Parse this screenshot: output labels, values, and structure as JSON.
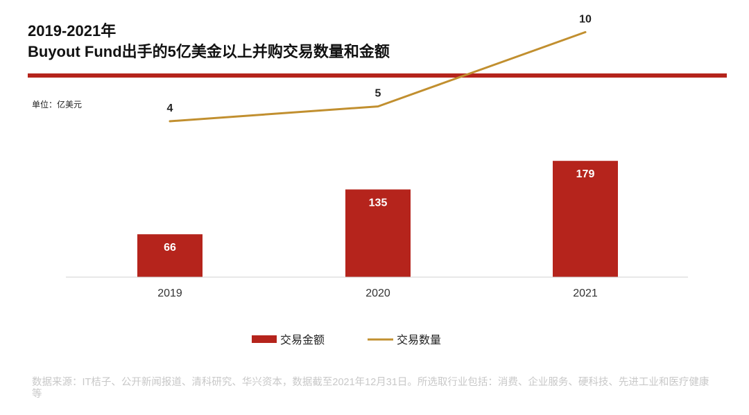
{
  "header": {
    "title_line1": "2019-2021年",
    "title_line2": "Buyout Fund出手的5亿美金以上并购交易数量和金额"
  },
  "unit_label": "单位：亿美元",
  "source_text": "数据来源：IT桔子、公开新闻报道、清科研究、华兴资本，数据截至2021年12月31日。所选取行业包括：消费、企业服务、硬科技、先进工业和医疗健康等",
  "colors": {
    "accent_red": "#b5241c",
    "bar_red": "#b5241c",
    "line_gold": "#c18f2f",
    "source_gray": "#c8c8c8"
  },
  "chart_data": {
    "type": "bar",
    "categories": [
      "2019",
      "2020",
      "2021"
    ],
    "series": [
      {
        "name": "交易金额",
        "type": "bar",
        "values": [
          66,
          135,
          179
        ],
        "color": "#b5241c"
      },
      {
        "name": "交易数量",
        "type": "line",
        "values": [
          4,
          5,
          10
        ],
        "color": "#c18f2f"
      }
    ],
    "bar_ylim": [
      0,
      400
    ],
    "line_ylim": [
      -6.5,
      11
    ],
    "legend_position": "bottom",
    "grid": false
  }
}
